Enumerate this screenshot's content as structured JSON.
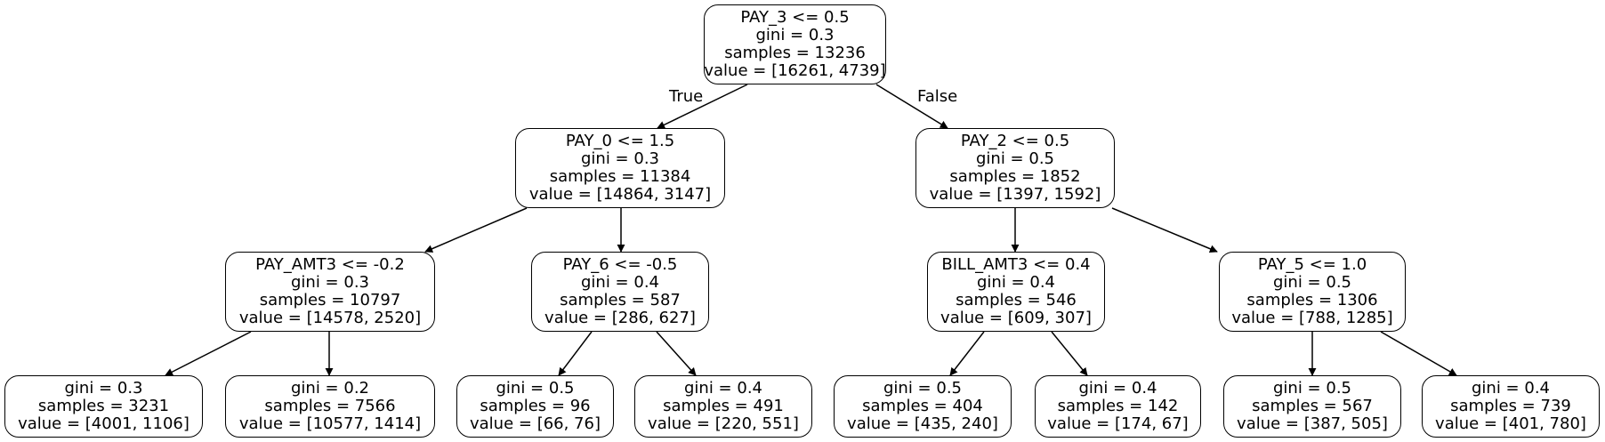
{
  "edge_labels": {
    "true_label": "True",
    "false_label": "False"
  },
  "nodes": [
    {
      "id": "n0",
      "lines": [
        "PAY_3 <= 0.5",
        "gini = 0.3",
        "samples = 13236",
        "value = [16261, 4739]"
      ]
    },
    {
      "id": "n1",
      "lines": [
        "PAY_0 <= 1.5",
        "gini = 0.3",
        "samples = 11384",
        "value = [14864, 3147]"
      ]
    },
    {
      "id": "n2",
      "lines": [
        "PAY_2 <= 0.5",
        "gini = 0.5",
        "samples = 1852",
        "value = [1397, 1592]"
      ]
    },
    {
      "id": "n3",
      "lines": [
        "PAY_AMT3 <= -0.2",
        "gini = 0.3",
        "samples = 10797",
        "value = [14578, 2520]"
      ]
    },
    {
      "id": "n4",
      "lines": [
        "PAY_6 <= -0.5",
        "gini = 0.4",
        "samples = 587",
        "value = [286, 627]"
      ]
    },
    {
      "id": "n5",
      "lines": [
        "BILL_AMT3 <= 0.4",
        "gini = 0.4",
        "samples = 546",
        "value = [609, 307]"
      ]
    },
    {
      "id": "n6",
      "lines": [
        "PAY_5 <= 1.0",
        "gini = 0.5",
        "samples = 1306",
        "value = [788, 1285]"
      ]
    },
    {
      "id": "n7",
      "lines": [
        "gini = 0.3",
        "samples = 3231",
        "value = [4001, 1106]"
      ]
    },
    {
      "id": "n8",
      "lines": [
        "gini = 0.2",
        "samples = 7566",
        "value = [10577, 1414]"
      ]
    },
    {
      "id": "n9",
      "lines": [
        "gini = 0.5",
        "samples = 96",
        "value = [66, 76]"
      ]
    },
    {
      "id": "n10",
      "lines": [
        "gini = 0.4",
        "samples = 491",
        "value = [220, 551]"
      ]
    },
    {
      "id": "n11",
      "lines": [
        "gini = 0.5",
        "samples = 404",
        "value = [435, 240]"
      ]
    },
    {
      "id": "n12",
      "lines": [
        "gini = 0.4",
        "samples = 142",
        "value = [174, 67]"
      ]
    },
    {
      "id": "n13",
      "lines": [
        "gini = 0.5",
        "samples = 567",
        "value = [387, 505]"
      ]
    },
    {
      "id": "n14",
      "lines": [
        "gini = 0.4",
        "samples = 739",
        "value = [401, 780]"
      ]
    }
  ],
  "edges": [
    {
      "from": "n0",
      "to": "n1"
    },
    {
      "from": "n0",
      "to": "n2"
    },
    {
      "from": "n1",
      "to": "n3"
    },
    {
      "from": "n1",
      "to": "n4"
    },
    {
      "from": "n2",
      "to": "n5"
    },
    {
      "from": "n2",
      "to": "n6"
    },
    {
      "from": "n3",
      "to": "n7"
    },
    {
      "from": "n3",
      "to": "n8"
    },
    {
      "from": "n4",
      "to": "n9"
    },
    {
      "from": "n4",
      "to": "n10"
    },
    {
      "from": "n5",
      "to": "n11"
    },
    {
      "from": "n5",
      "to": "n12"
    },
    {
      "from": "n6",
      "to": "n13"
    },
    {
      "from": "n6",
      "to": "n14"
    }
  ]
}
